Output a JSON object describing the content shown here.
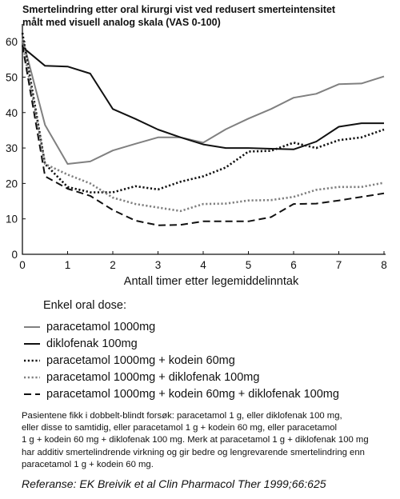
{
  "title_lines": [
    "Smertelindring etter oral kirurgi vist ved redusert smerteintensitet",
    "målt med visuell analog skala (VAS 0-100)"
  ],
  "chart_data": {
    "type": "line",
    "title": "Smertelindring etter oral kirurgi vist ved redusert smerteintensitet målt med visuell analog skala (VAS 0-100)",
    "xlabel": "Antall timer etter legemiddelinntak",
    "ylabel": "",
    "xlim": [
      0,
      8
    ],
    "ylim": [
      0,
      65
    ],
    "xticks": [
      "0",
      "1",
      "2",
      "3",
      "4",
      "5",
      "6",
      "7",
      "8"
    ],
    "yticks": [
      "0",
      "10",
      "20",
      "30",
      "40",
      "50",
      "60"
    ],
    "grid": false,
    "legend_title": "Enkel oral dose:",
    "legend_position": "below",
    "series": [
      {
        "name": "paracetamol 1000mg",
        "color": "#808080",
        "style": "solid",
        "x": [
          0,
          0.5,
          1,
          1.5,
          2,
          2.5,
          3,
          3.5,
          4,
          4.5,
          5,
          5.5,
          6,
          6.5,
          7,
          7.5,
          8
        ],
        "y": [
          61,
          36.5,
          25.5,
          26.2,
          29.3,
          31.2,
          33,
          33,
          31.5,
          35.3,
          38.3,
          41,
          44.2,
          45.3,
          48,
          48.2,
          50.2
        ]
      },
      {
        "name": "diklofenak 100mg",
        "color": "#111111",
        "style": "solid",
        "x": [
          0,
          0.5,
          1,
          1.5,
          2,
          2.5,
          3,
          3.5,
          4,
          4.5,
          5,
          5.5,
          6,
          6.5,
          7,
          7.5,
          8
        ],
        "y": [
          58.5,
          53.2,
          53,
          51,
          41,
          38.2,
          35.2,
          33,
          31,
          30,
          30,
          29.8,
          29.6,
          31.8,
          36,
          37,
          37
        ]
      },
      {
        "name": "paracetamol 1000mg + kodein 60mg",
        "color": "#111111",
        "style": "dotted",
        "x": [
          0,
          0.5,
          1,
          1.5,
          2,
          2.5,
          3,
          3.5,
          4,
          4.5,
          5,
          5.5,
          6,
          6.5,
          7,
          7.5,
          8
        ],
        "y": [
          62.5,
          25.5,
          19,
          17.5,
          17.5,
          19.2,
          18.3,
          20.5,
          22,
          24.5,
          29,
          29.2,
          31.5,
          30,
          32.2,
          33,
          35.2
        ]
      },
      {
        "name": "paracetamol 1000mg + diklofenak 100mg",
        "color": "#808080",
        "style": "dotted",
        "x": [
          0,
          0.5,
          1,
          1.5,
          2,
          2.5,
          3,
          3.5,
          4,
          4.5,
          5,
          5.5,
          6,
          6.5,
          7,
          7.5,
          8
        ],
        "y": [
          60,
          25.5,
          22.5,
          20,
          16,
          14.2,
          13.2,
          12.2,
          14.2,
          14.3,
          15.2,
          15.3,
          16.2,
          18.2,
          19,
          19,
          20.2
        ]
      },
      {
        "name": "paracetamol 1000mg + kodein 60mg + diklofenak 100mg",
        "color": "#111111",
        "style": "dashed",
        "x": [
          0,
          0.5,
          1,
          1.5,
          2,
          2.5,
          3,
          3.5,
          4,
          4.5,
          5,
          5.5,
          6,
          6.5,
          7,
          7.5,
          8
        ],
        "y": [
          59,
          22,
          18.5,
          16.5,
          12.5,
          9.5,
          8.2,
          8.3,
          9.3,
          9.3,
          9.3,
          10.5,
          14.2,
          14.3,
          15.2,
          16.2,
          17.2
        ]
      }
    ]
  },
  "note_lines": [
    "Pasientene fikk i dobbelt-blindt forsøk: paracetamol 1 g, eller diklofenak 100 mg,",
    "eller disse to samtidig, eller paracetamol 1 g + kodein 60 mg, eller paracetamol",
    "1 g + kodein 60 mg + diklofenak 100 mg. Merk at paracetamol 1 g + diklofenak 100 mg",
    "har additiv smertelindrende virkning og gir bedre og lengrevarende smertelindring enn",
    "paracetamol 1 g + kodein 60 mg."
  ],
  "reference": "Referanse: EK Breivik et al Clin Pharmacol Ther 1999;66:625"
}
